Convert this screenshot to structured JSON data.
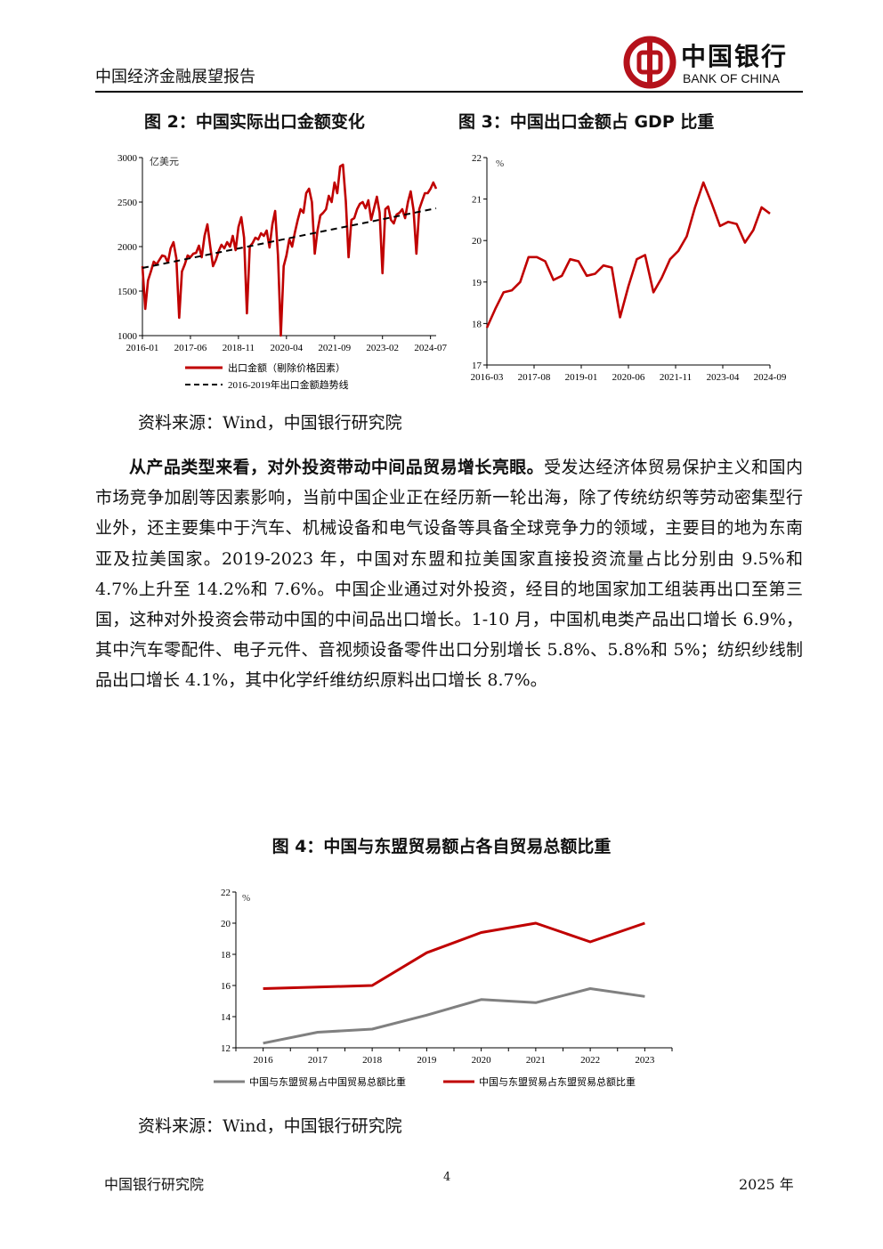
{
  "header": {
    "report_title": "中国经济金融展望报告",
    "logo_cn": "中国银行",
    "logo_en": "BANK OF CHINA"
  },
  "figure2": {
    "title": "图 2：中国实际出口金额变化",
    "unit": "亿美元",
    "legend": [
      "出口金额（剔除价格因素）",
      "2016-2019年出口金额趋势线"
    ],
    "chart_data": {
      "type": "line",
      "x_ticks": [
        "2016-01",
        "2017-06",
        "2018-11",
        "2020-04",
        "2021-09",
        "2023-02",
        "2024-07"
      ],
      "y_ticks": [
        "1000",
        "1500",
        "2000",
        "2500",
        "3000"
      ],
      "ylim": [
        1000,
        3000
      ],
      "series": [
        {
          "name": "出口金额（剔除价格因素）",
          "color": "#c00000",
          "x": [
            "2016-01",
            "2016-02",
            "2016-03",
            "2016-04",
            "2016-05",
            "2016-06",
            "2016-07",
            "2016-08",
            "2016-09",
            "2016-10",
            "2016-11",
            "2016-12",
            "2017-01",
            "2017-02",
            "2017-03",
            "2017-04",
            "2017-05",
            "2017-06",
            "2017-07",
            "2017-08",
            "2017-09",
            "2017-10",
            "2017-11",
            "2017-12",
            "2018-01",
            "2018-02",
            "2018-03",
            "2018-04",
            "2018-05",
            "2018-06",
            "2018-07",
            "2018-08",
            "2018-09",
            "2018-10",
            "2018-11",
            "2018-12",
            "2019-01",
            "2019-02",
            "2019-03",
            "2019-04",
            "2019-05",
            "2019-06",
            "2019-07",
            "2019-08",
            "2019-09",
            "2019-10",
            "2019-11",
            "2019-12",
            "2020-01",
            "2020-02",
            "2020-03",
            "2020-04",
            "2020-05",
            "2020-06",
            "2020-07",
            "2020-08",
            "2020-09",
            "2020-10",
            "2020-11",
            "2020-12",
            "2021-01",
            "2021-02",
            "2021-03",
            "2021-04",
            "2021-05",
            "2021-06",
            "2021-07",
            "2021-08",
            "2021-09",
            "2021-10",
            "2021-11",
            "2021-12",
            "2022-01",
            "2022-02",
            "2022-03",
            "2022-04",
            "2022-05",
            "2022-06",
            "2022-07",
            "2022-08",
            "2022-09",
            "2022-10",
            "2022-11",
            "2022-12",
            "2023-01",
            "2023-02",
            "2023-03",
            "2023-04",
            "2023-05",
            "2023-06",
            "2023-07",
            "2023-08",
            "2023-09",
            "2023-10",
            "2023-11",
            "2023-12",
            "2024-01",
            "2024-02",
            "2024-03",
            "2024-04",
            "2024-05",
            "2024-06",
            "2024-07",
            "2024-08",
            "2024-09"
          ],
          "values": [
            1780,
            1300,
            1620,
            1720,
            1830,
            1800,
            1850,
            1900,
            1890,
            1820,
            1980,
            2050,
            1870,
            1200,
            1720,
            1800,
            1900,
            1880,
            1920,
            1930,
            2010,
            1880,
            2120,
            2250,
            2000,
            1780,
            1850,
            1950,
            2020,
            1980,
            2050,
            2000,
            2120,
            1960,
            2220,
            2330,
            2100,
            1250,
            2000,
            2040,
            2100,
            2080,
            2150,
            2120,
            2180,
            1990,
            2250,
            2400,
            1900,
            1000,
            1780,
            1900,
            2080,
            2000,
            2160,
            2300,
            2420,
            2380,
            2600,
            2650,
            2500,
            1920,
            2180,
            2350,
            2380,
            2420,
            2570,
            2500,
            2720,
            2600,
            2900,
            2920,
            2510,
            1880,
            2300,
            2320,
            2420,
            2480,
            2500,
            2430,
            2520,
            2300,
            2430,
            2560,
            2380,
            1700,
            2420,
            2450,
            2300,
            2260,
            2360,
            2380,
            2420,
            2320,
            2500,
            2620,
            2410,
            1920,
            2420,
            2510,
            2600,
            2600,
            2650,
            2720,
            2650
          ]
        },
        {
          "name": "2016-2019年出口金额趋势线",
          "style": "dashed",
          "color": "#000000",
          "x": [
            "2016-01",
            "2024-09"
          ],
          "values": [
            1760,
            2430
          ]
        }
      ]
    }
  },
  "figure3": {
    "title": "图 3：中国出口金额占 GDP 比重",
    "unit": "%",
    "chart_data": {
      "type": "line",
      "x_ticks": [
        "2016-03",
        "2017-08",
        "2019-01",
        "2020-06",
        "2021-11",
        "2023-04",
        "2024-09"
      ],
      "y_ticks": [
        "17",
        "18",
        "19",
        "20",
        "21",
        "22"
      ],
      "ylim": [
        17,
        22
      ],
      "series": [
        {
          "name": "",
          "color": "#c00000",
          "values": [
            17.9,
            18.35,
            18.75,
            18.8,
            19.0,
            19.6,
            19.6,
            19.5,
            19.05,
            19.15,
            19.55,
            19.5,
            19.15,
            19.2,
            19.4,
            19.35,
            18.15,
            18.9,
            19.55,
            19.65,
            18.75,
            19.1,
            19.55,
            19.75,
            20.1,
            20.8,
            21.4,
            20.9,
            20.35,
            20.45,
            20.4,
            19.95,
            20.25,
            20.8,
            20.65
          ]
        }
      ]
    }
  },
  "source1": "资料来源：Wind，中国银行研究院",
  "paragraph": {
    "lead_bold": "从产品类型来看，对外投资带动中间品贸易增长亮眼。",
    "text": "受发达经济体贸易保护主义和国内市场竞争加剧等因素影响，当前中国企业正在经历新一轮出海，除了传统纺织等劳动密集型行业外，还主要集中于汽车、机械设备和电气设备等具备全球竞争力的领域，主要目的地为东南亚及拉美国家。2019-2023 年，中国对东盟和拉美国家直接投资流量占比分别由 9.5%和 4.7%上升至 14.2%和 7.6%。中国企业通过对外投资，经目的地国家加工组装再出口至第三国，这种对外投资会带动中国的中间品出口增长。1-10 月，中国机电类产品出口增长 6.9%，其中汽车零配件、电子元件、音视频设备零件出口分别增长 5.8%、5.8%和 5%；纺织纱线制品出口增长 4.1%，其中化学纤维纺织原料出口增长 8.7%。"
  },
  "figure4": {
    "title": "图 4：中国与东盟贸易额占各自贸易总额比重",
    "unit": "%",
    "chart_data": {
      "type": "line",
      "categories": [
        "2016",
        "2017",
        "2018",
        "2019",
        "2020",
        "2021",
        "2022",
        "2023"
      ],
      "y_ticks": [
        "12",
        "14",
        "16",
        "18",
        "20",
        "22"
      ],
      "ylim": [
        12,
        22
      ],
      "series": [
        {
          "name": "中国与东盟贸易占中国贸易总额比重",
          "color": "#808080",
          "values": [
            12.3,
            13.0,
            13.2,
            14.1,
            15.1,
            14.9,
            15.8,
            15.3
          ]
        },
        {
          "name": "中国与东盟贸易占东盟贸易总额比重",
          "color": "#c00000",
          "values": [
            15.8,
            15.9,
            16.0,
            18.1,
            19.4,
            20.0,
            18.8,
            20.0
          ]
        }
      ]
    }
  },
  "source2": "资料来源：Wind，中国银行研究院",
  "footer": {
    "left": "中国银行研究院",
    "page": "4",
    "right": "2025 年"
  }
}
